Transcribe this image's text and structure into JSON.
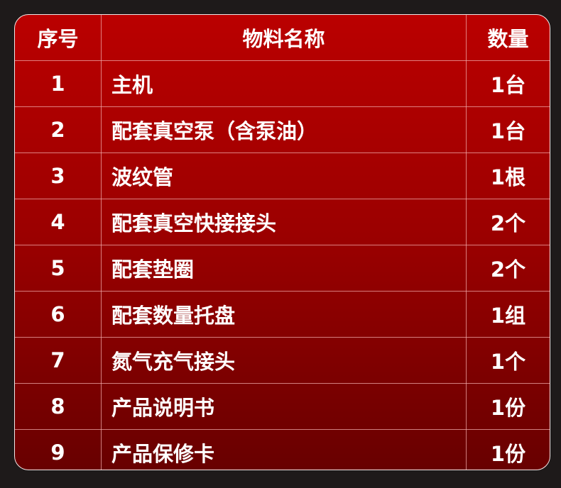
{
  "colors": {
    "background": "#1e1a1a",
    "table_top": "#ba0000",
    "table_bottom": "#680000",
    "grid": "#f0aaaa",
    "text": "#ffffff"
  },
  "header": {
    "index": "序号",
    "name": "物料名称",
    "qty": "数量"
  },
  "rows": [
    {
      "index": "1",
      "name": "主机",
      "qty": "1台"
    },
    {
      "index": "2",
      "name": "配套真空泵（含泵油）",
      "qty": "1台"
    },
    {
      "index": "3",
      "name": "波纹管",
      "qty": "1根"
    },
    {
      "index": "4",
      "name": "配套真空快接接头",
      "qty": "2个"
    },
    {
      "index": "5",
      "name": "配套垫圈",
      "qty": "2个"
    },
    {
      "index": "6",
      "name": "配套数量托盘",
      "qty": "1组"
    },
    {
      "index": "7",
      "name": "氮气充气接头",
      "qty": "1个"
    },
    {
      "index": "8",
      "name": "产品说明书",
      "qty": "1份"
    },
    {
      "index": "9",
      "name": "产品保修卡",
      "qty": "1份"
    }
  ]
}
